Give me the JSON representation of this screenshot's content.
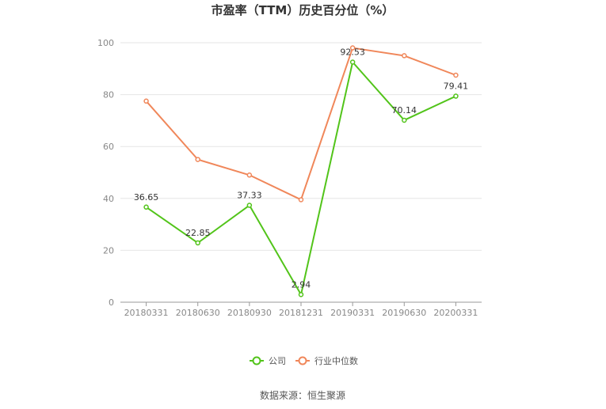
{
  "chart_data": {
    "type": "line",
    "title": "市盈率（TTM）历史百分位（%）",
    "xlabel": "",
    "ylabel": "",
    "categories": [
      "20180331",
      "20180630",
      "20180930",
      "20181231",
      "20190331",
      "20190630",
      "20200331"
    ],
    "ylim": [
      0,
      100
    ],
    "yticks": [
      0,
      20,
      40,
      60,
      80,
      100
    ],
    "grid": true,
    "legend": "bottom",
    "series": [
      {
        "name": "公司",
        "color": "#52c41a",
        "values": [
          36.65,
          22.85,
          37.33,
          2.94,
          92.53,
          70.14,
          79.41
        ],
        "labels": [
          "36.65",
          "22.85",
          "37.33",
          "2.94",
          "92.53",
          "70.14",
          "79.41"
        ]
      },
      {
        "name": "行业中位数",
        "color": "#f0875a",
        "values": [
          77.5,
          55.0,
          49.0,
          39.5,
          98.0,
          95.0,
          87.5
        ]
      }
    ],
    "source": "数据来源：恒生聚源"
  }
}
